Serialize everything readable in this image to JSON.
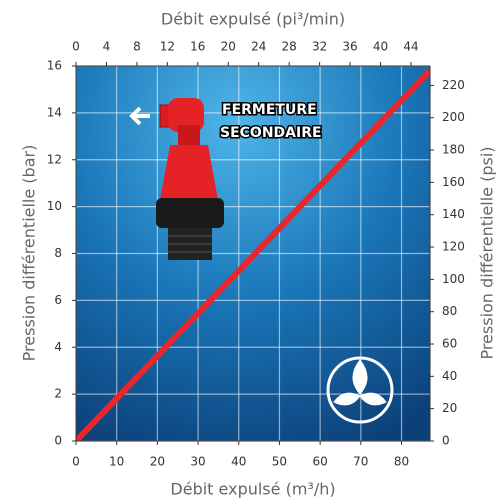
{
  "chart_data": {
    "type": "line",
    "x_label": "Débit expulsé (m³/h)",
    "x2_label": "Débit expulsé (pi³/min)",
    "y_label": "Pression différentielle (bar)",
    "y2_label": "Pression différentielle (psi)",
    "annotation": [
      "FERMETURE",
      "SECONDAIRE"
    ],
    "x": [
      0,
      87
    ],
    "series": [
      {
        "color": "#e8262b",
        "values": [
          0,
          15.8
        ]
      }
    ],
    "xlim": [
      0,
      87
    ],
    "xticks": [
      0,
      10,
      20,
      30,
      40,
      50,
      60,
      70,
      80
    ],
    "x2lim": [
      0,
      46.5
    ],
    "x2ticks": [
      0,
      4,
      8,
      12,
      16,
      20,
      24,
      28,
      32,
      36,
      40,
      44
    ],
    "ylim": [
      0,
      16
    ],
    "yticks": [
      0,
      2,
      4,
      6,
      8,
      10,
      12,
      14,
      16
    ],
    "y2lim": [
      0,
      232
    ],
    "y2ticks": [
      0,
      20,
      40,
      60,
      80,
      100,
      120,
      140,
      160,
      180,
      200,
      220
    ],
    "grid": true
  }
}
